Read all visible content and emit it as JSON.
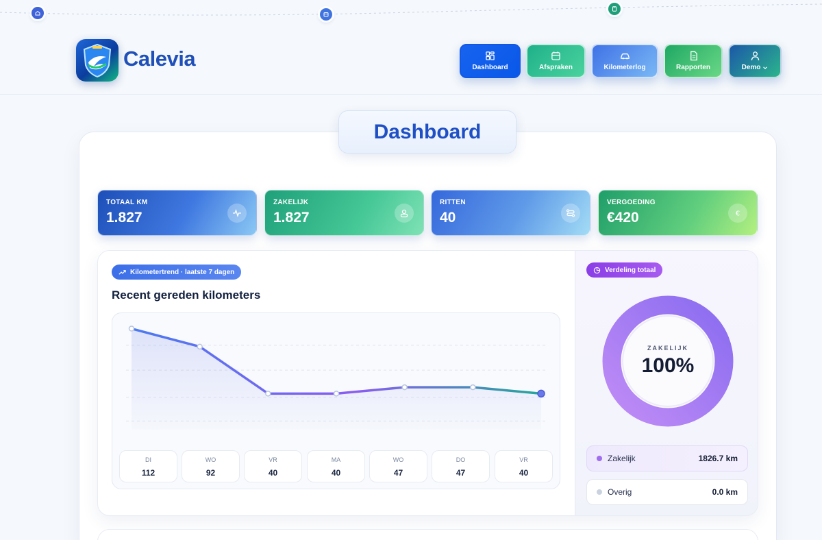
{
  "brand": {
    "name": "Calevia"
  },
  "nav": {
    "dashboard": "Dashboard",
    "afspraken": "Afspraken",
    "kilometerlog": "Kilometerlog",
    "rapporten": "Rapporten",
    "user": "Demo"
  },
  "page": {
    "title": "Dashboard"
  },
  "stats": [
    {
      "label": "TOTAAL KM",
      "value": "1.827",
      "icon": "activity-icon"
    },
    {
      "label": "ZAKELIJK",
      "value": "1.827",
      "icon": "user-badge-icon"
    },
    {
      "label": "RITTEN",
      "value": "40",
      "icon": "route-icon"
    },
    {
      "label": "VERGOEDING",
      "value": "€420",
      "icon": "euro-icon"
    }
  ],
  "trend": {
    "badge": "Kilometertrend · laatste 7 dagen",
    "title": "Recent gereden kilometers",
    "days": [
      {
        "day": "DI",
        "value": "112"
      },
      {
        "day": "WO",
        "value": "92"
      },
      {
        "day": "VR",
        "value": "40"
      },
      {
        "day": "MA",
        "value": "40"
      },
      {
        "day": "WO",
        "value": "47"
      },
      {
        "day": "DO",
        "value": "47"
      },
      {
        "day": "VR",
        "value": "40"
      }
    ]
  },
  "chart_data": {
    "type": "line",
    "x": [
      "DI",
      "WO",
      "VR",
      "MA",
      "WO",
      "DO",
      "VR"
    ],
    "series": [
      {
        "values": [
          112,
          92,
          40,
          40,
          47,
          47,
          40
        ]
      }
    ],
    "ylim": [
      0,
      120
    ],
    "grid": true
  },
  "distribution": {
    "badge": "Verdeling totaal",
    "center_label": "ZAKELIJK",
    "center_value": "100%",
    "share": 1.0,
    "items": [
      {
        "label": "Zakelijk",
        "amount": "1826.7 km",
        "color": "#a06cf0"
      },
      {
        "label": "Overig",
        "amount": "0.0 km",
        "color": "#c9d2de"
      }
    ]
  },
  "colors": {
    "accent": "#1763f0",
    "line_start": "#4a7af0",
    "line_mid": "#8a5cf0",
    "line_end": "#22a79a"
  }
}
